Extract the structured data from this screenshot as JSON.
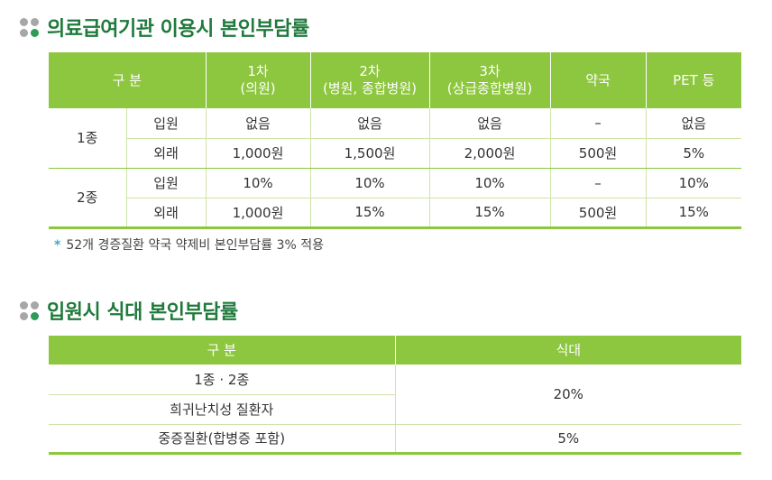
{
  "section1": {
    "title": "의료급여기관 이용시 본인부담률",
    "headers": {
      "category": "구 분",
      "h1": "1차",
      "h1sub": "(의원)",
      "h2": "2차",
      "h2sub": "(병원, 종합병원)",
      "h3": "3차",
      "h3sub": "(상급종합병원)",
      "h4": "약국",
      "h5": "PET 등"
    },
    "rows": [
      {
        "group": "1종",
        "type": "입원",
        "c1": "없음",
        "c2": "없음",
        "c3": "없음",
        "c4": "–",
        "c5": "없음"
      },
      {
        "type": "외래",
        "c1": "1,000원",
        "c2": "1,500원",
        "c3": "2,000원",
        "c4": "500원",
        "c5": "5%"
      },
      {
        "group": "2종",
        "type": "입원",
        "c1": "10%",
        "c2": "10%",
        "c3": "10%",
        "c4": "–",
        "c5": "10%"
      },
      {
        "type": "외래",
        "c1": "1,000원",
        "c2": "15%",
        "c3": "15%",
        "c4": "500원",
        "c5": "15%"
      }
    ],
    "note_marker": "*",
    "note": "52개 경증질환 약국 약제비 본인부담률 3% 적용"
  },
  "section2": {
    "title": "입원시 식대 본인부담률",
    "headers": {
      "category": "구 분",
      "meal": "식대"
    },
    "rows": [
      {
        "category": "1종 · 2종",
        "value": "20%"
      },
      {
        "category": "희귀난치성 질환자"
      },
      {
        "category": "중증질환(합병증 포함)",
        "value": "5%"
      }
    ]
  },
  "colors": {
    "accent": "#8dc63f",
    "title": "#1f7a3c",
    "note_marker": "#3fa9d0"
  }
}
